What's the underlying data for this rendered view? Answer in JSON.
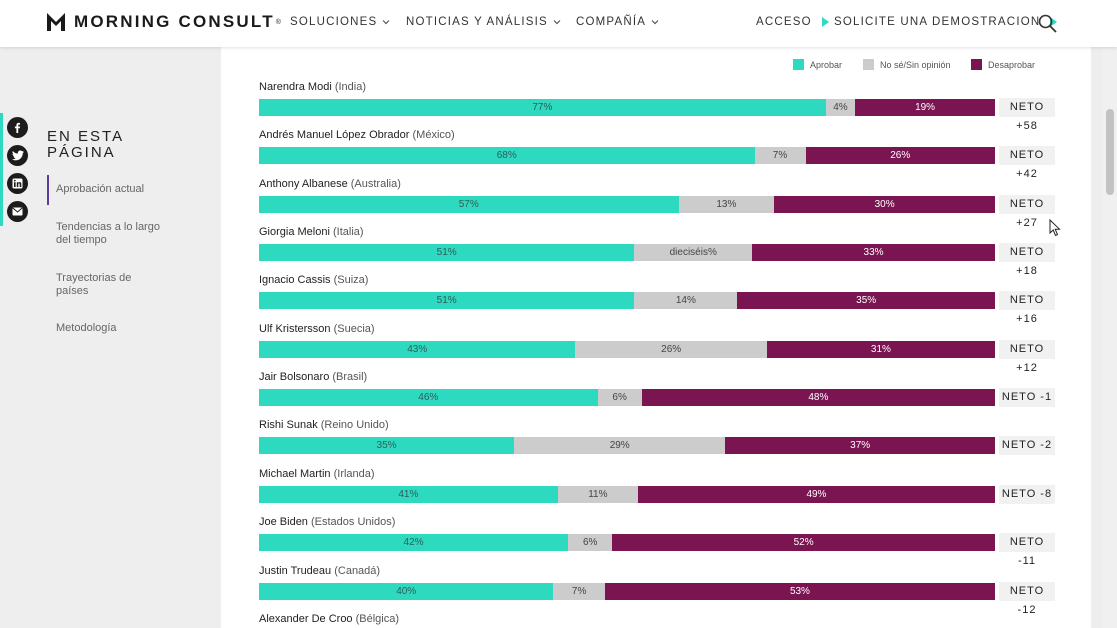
{
  "header": {
    "logo_text": "MORNING CONSULT",
    "logo_tm": "®",
    "nav": [
      {
        "label": "SOLUCIONES"
      },
      {
        "label": "NOTICIAS Y ANÁLISIS"
      },
      {
        "label": "COMPAÑÍA"
      }
    ],
    "login_label": "ACCESO",
    "demo_label": "SOLICITE UNA DEMOSTRACION"
  },
  "sidebar": {
    "title": "EN ESTA PÁGINA",
    "items": [
      {
        "label": "Aprobación actual"
      },
      {
        "label": "Tendencias a lo largo del tiempo"
      },
      {
        "label": "Trayectorias de países"
      },
      {
        "label": "Metodología"
      }
    ]
  },
  "social": [
    "facebook-icon",
    "twitter-icon",
    "linkedin-icon",
    "email-icon"
  ],
  "colors": {
    "approve": "#2dd9bf",
    "unsure": "#cccccc",
    "disapprove": "#7a1551"
  },
  "legend": {
    "approve": "Aprobar",
    "unsure": "No sé/Sin opinión",
    "disapprove": "Desaprobar"
  },
  "chart_data": {
    "type": "bar",
    "stacked": true,
    "orientation": "horizontal",
    "series_names": [
      "Aprobar",
      "No sé/Sin opinión",
      "Desaprobar"
    ],
    "rows": [
      {
        "name": "Narendra Modi",
        "country": "(India)",
        "approve": 77,
        "unsure": 4,
        "disapprove": 19,
        "approve_label": "77%",
        "unsure_label": "4%",
        "disapprove_label": "19%",
        "neto_label": "NETO",
        "neto_value": "+58"
      },
      {
        "name": "Andrés Manuel López Obrador",
        "country": "(México)",
        "approve": 68,
        "unsure": 7,
        "disapprove": 26,
        "approve_label": "68%",
        "unsure_label": "7%",
        "disapprove_label": "26%",
        "neto_label": "NETO",
        "neto_value": "+42"
      },
      {
        "name": "Anthony Albanese",
        "country": "(Australia)",
        "approve": 57,
        "unsure": 13,
        "disapprove": 30,
        "approve_label": "57%",
        "unsure_label": "13%",
        "disapprove_label": "30%",
        "neto_label": "NETO",
        "neto_value": "+27"
      },
      {
        "name": "Giorgia Meloni",
        "country": "(Italia)",
        "approve": 51,
        "unsure": 16,
        "disapprove": 33,
        "approve_label": "51%",
        "unsure_label": "dieciséis%",
        "disapprove_label": "33%",
        "neto_label": "NETO",
        "neto_value": "+18"
      },
      {
        "name": "Ignacio Cassis",
        "country": "(Suiza)",
        "approve": 51,
        "unsure": 14,
        "disapprove": 35,
        "approve_label": "51%",
        "unsure_label": "14%",
        "disapprove_label": "35%",
        "neto_label": "NETO",
        "neto_value": "+16"
      },
      {
        "name": "Ulf Kristersson",
        "country": "(Suecia)",
        "approve": 43,
        "unsure": 26,
        "disapprove": 31,
        "approve_label": "43%",
        "unsure_label": "26%",
        "disapprove_label": "31%",
        "neto_label": "NETO",
        "neto_value": "+12"
      },
      {
        "name": "Jair Bolsonaro",
        "country": "(Brasil)",
        "approve": 46,
        "unsure": 6,
        "disapprove": 48,
        "approve_label": "46%",
        "unsure_label": "6%",
        "disapprove_label": "48%",
        "neto_label": "NETO -1",
        "neto_value": ""
      },
      {
        "name": "Rishi Sunak",
        "country": "(Reino Unido)",
        "approve": 35,
        "unsure": 29,
        "disapprove": 37,
        "approve_label": "35%",
        "unsure_label": "29%",
        "disapprove_label": "37%",
        "neto_label": "NETO -2",
        "neto_value": ""
      },
      {
        "name": "Michael Martin",
        "country": "(Irlanda)",
        "approve": 41,
        "unsure": 11,
        "disapprove": 49,
        "approve_label": "41%",
        "unsure_label": "11%",
        "disapprove_label": "49%",
        "neto_label": "NETO -8",
        "neto_value": ""
      },
      {
        "name": "Joe Biden",
        "country": "(Estados Unidos)",
        "approve": 42,
        "unsure": 6,
        "disapprove": 52,
        "approve_label": "42%",
        "unsure_label": "6%",
        "disapprove_label": "52%",
        "neto_label": "NETO",
        "neto_value": "-11"
      },
      {
        "name": "Justin Trudeau",
        "country": "(Canadá)",
        "approve": 40,
        "unsure": 7,
        "disapprove": 53,
        "approve_label": "40%",
        "unsure_label": "7%",
        "disapprove_label": "53%",
        "neto_label": "NETO",
        "neto_value": "-12"
      },
      {
        "name": "Alexander De Croo",
        "country": "(Bélgica)"
      }
    ]
  }
}
